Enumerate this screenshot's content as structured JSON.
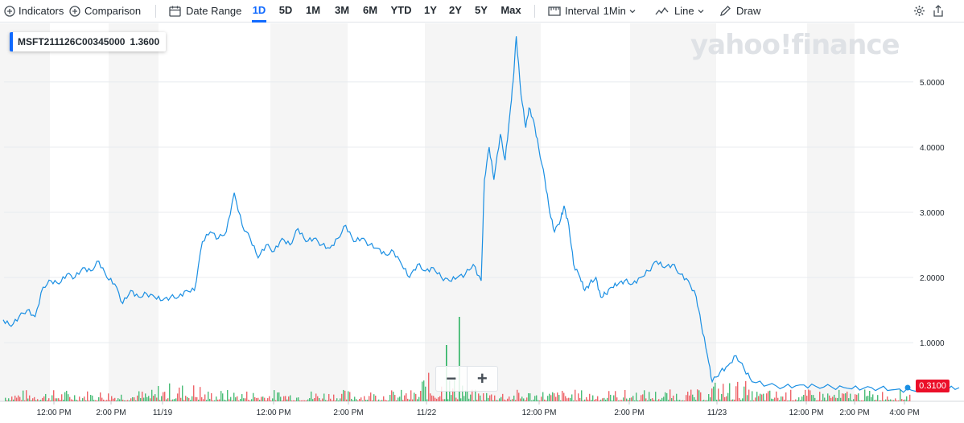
{
  "toolbar": {
    "indicators": "Indicators",
    "comparison": "Comparison",
    "date_range": "Date Range",
    "ranges": [
      "1D",
      "5D",
      "1M",
      "3M",
      "6M",
      "YTD",
      "1Y",
      "2Y",
      "5Y",
      "Max"
    ],
    "active_range": "1D",
    "interval_label": "Interval",
    "interval_value": "1Min",
    "line_label": "Line",
    "draw_label": "Draw"
  },
  "legend": {
    "symbol": "MSFT211126C00345000",
    "value": "1.3600"
  },
  "watermark": "yahoo!finance",
  "last_price_tag": "0.3100",
  "colors": {
    "line": "#1a8fe3",
    "up": "#2ab260",
    "down": "#eb4a50",
    "shade": "#f5f5f5",
    "grid": "#e8ebef",
    "tag": "#eb0f29"
  },
  "chart_data": {
    "type": "line",
    "title": "",
    "xlabel": "",
    "ylabel": "",
    "ylim": [
      0.1,
      5.9
    ],
    "y_ticks": [
      "5.0000",
      "4.0000",
      "3.0000",
      "2.0000",
      "1.0000"
    ],
    "y_tick_values": [
      5,
      4,
      3,
      2,
      1
    ],
    "x_tick_labels": [
      "12:00 PM",
      "2:00 PM",
      "11/19",
      "12:00 PM",
      "2:00 PM",
      "11/22",
      "12:00 PM",
      "2:00 PM",
      "11/23",
      "12:00 PM",
      "2:00 PM",
      "4:00 PM"
    ],
    "x_tick_positions": [
      0.068,
      0.138,
      0.209,
      0.365,
      0.461,
      0.558,
      0.712,
      0.809,
      0.926,
      1.04,
      1.13,
      1.22
    ],
    "trading_day_ranges": [
      [
        0,
        1.0
      ],
      [
        1.0,
        2.0
      ],
      [
        2.0,
        3.0
      ],
      [
        3.0,
        4.0
      ]
    ],
    "series": [
      {
        "values": [
          [
            0.0,
            1.35
          ],
          [
            0.05,
            1.25
          ],
          [
            0.1,
            1.4
          ],
          [
            0.15,
            1.5
          ],
          [
            0.2,
            1.4
          ],
          [
            0.25,
            1.85
          ],
          [
            0.3,
            1.95
          ],
          [
            0.35,
            1.9
          ],
          [
            0.4,
            2.05
          ],
          [
            0.45,
            2.0
          ],
          [
            0.5,
            2.15
          ],
          [
            0.55,
            2.1
          ],
          [
            0.6,
            2.25
          ],
          [
            0.65,
            2.0
          ],
          [
            0.7,
            1.9
          ],
          [
            0.75,
            1.6
          ],
          [
            0.8,
            1.8
          ],
          [
            0.85,
            1.7
          ],
          [
            0.9,
            1.75
          ],
          [
            0.95,
            1.7
          ],
          [
            1.0,
            1.65
          ],
          [
            1.05,
            1.7
          ],
          [
            1.1,
            1.7
          ],
          [
            1.15,
            1.8
          ],
          [
            1.2,
            1.8
          ],
          [
            1.25,
            2.55
          ],
          [
            1.3,
            2.7
          ],
          [
            1.35,
            2.6
          ],
          [
            1.4,
            2.7
          ],
          [
            1.45,
            3.3
          ],
          [
            1.5,
            2.8
          ],
          [
            1.55,
            2.6
          ],
          [
            1.6,
            2.3
          ],
          [
            1.65,
            2.5
          ],
          [
            1.7,
            2.4
          ],
          [
            1.75,
            2.6
          ],
          [
            1.8,
            2.5
          ],
          [
            1.85,
            2.75
          ],
          [
            1.9,
            2.55
          ],
          [
            1.95,
            2.6
          ],
          [
            2.0,
            2.5
          ],
          [
            2.05,
            2.45
          ],
          [
            2.1,
            2.6
          ],
          [
            2.15,
            2.8
          ],
          [
            2.2,
            2.55
          ],
          [
            2.25,
            2.6
          ],
          [
            2.3,
            2.5
          ],
          [
            2.35,
            2.45
          ],
          [
            2.4,
            2.35
          ],
          [
            2.45,
            2.4
          ],
          [
            2.5,
            2.2
          ],
          [
            2.55,
            2.0
          ],
          [
            2.6,
            2.2
          ],
          [
            2.65,
            2.1
          ],
          [
            2.7,
            2.15
          ],
          [
            2.75,
            2.0
          ],
          [
            2.8,
            1.95
          ],
          [
            2.85,
            2.0
          ],
          [
            2.9,
            2.05
          ],
          [
            2.95,
            2.2
          ],
          [
            3.0,
            1.95
          ],
          [
            3.02,
            3.5
          ],
          [
            3.05,
            4.0
          ],
          [
            3.08,
            3.5
          ],
          [
            3.12,
            4.2
          ],
          [
            3.15,
            3.8
          ],
          [
            3.18,
            4.5
          ],
          [
            3.2,
            5.0
          ],
          [
            3.22,
            5.7
          ],
          [
            3.25,
            4.8
          ],
          [
            3.28,
            4.3
          ],
          [
            3.3,
            4.6
          ],
          [
            3.33,
            4.4
          ],
          [
            3.36,
            4.0
          ],
          [
            3.4,
            3.5
          ],
          [
            3.43,
            3.0
          ],
          [
            3.46,
            2.7
          ],
          [
            3.5,
            2.9
          ],
          [
            3.52,
            3.1
          ],
          [
            3.55,
            2.8
          ],
          [
            3.58,
            2.2
          ],
          [
            3.62,
            2.0
          ],
          [
            3.65,
            1.8
          ],
          [
            3.68,
            1.9
          ],
          [
            3.72,
            2.0
          ],
          [
            3.75,
            1.7
          ],
          [
            3.78,
            1.75
          ],
          [
            3.82,
            1.85
          ],
          [
            3.86,
            1.9
          ],
          [
            3.9,
            1.95
          ],
          [
            3.95,
            1.9
          ],
          [
            4.0,
            2.0
          ],
          [
            4.05,
            2.1
          ],
          [
            4.1,
            2.25
          ],
          [
            4.15,
            2.15
          ],
          [
            4.2,
            2.2
          ],
          [
            4.25,
            2.05
          ],
          [
            4.3,
            1.95
          ],
          [
            4.35,
            1.7
          ],
          [
            4.38,
            1.3
          ],
          [
            4.42,
            0.8
          ],
          [
            4.45,
            0.4
          ],
          [
            4.5,
            0.55
          ],
          [
            4.55,
            0.65
          ],
          [
            4.6,
            0.8
          ],
          [
            4.65,
            0.6
          ],
          [
            4.7,
            0.4
          ],
          [
            4.8,
            0.35
          ],
          [
            4.9,
            0.32
          ],
          [
            5.0,
            0.35
          ],
          [
            5.1,
            0.33
          ],
          [
            5.2,
            0.32
          ],
          [
            5.3,
            0.3
          ],
          [
            5.4,
            0.3
          ],
          [
            5.5,
            0.3
          ],
          [
            5.6,
            0.28
          ],
          [
            5.7,
            0.27
          ],
          [
            5.8,
            0.3
          ],
          [
            5.9,
            0.28
          ],
          [
            6.0,
            0.31
          ]
        ]
      }
    ]
  }
}
